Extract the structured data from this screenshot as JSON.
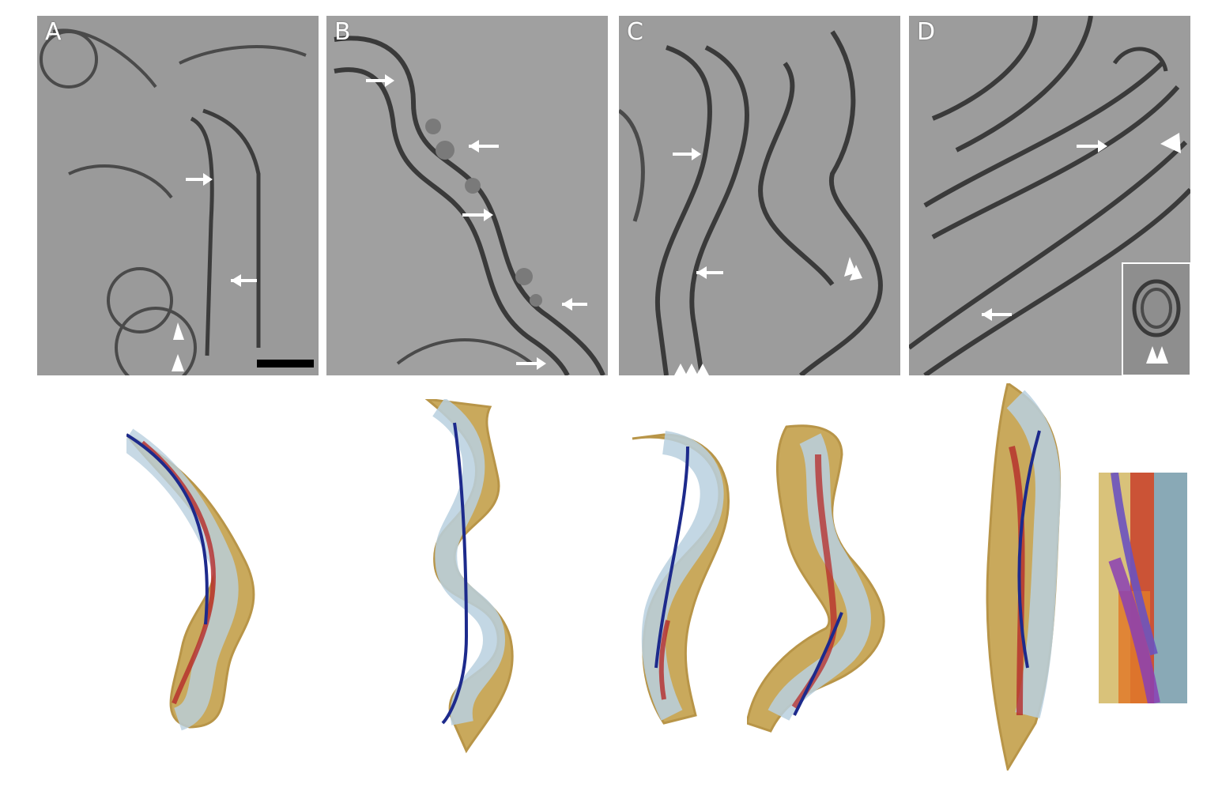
{
  "panels": [
    {
      "id": "A",
      "label": "A"
    },
    {
      "id": "B",
      "label": "B"
    },
    {
      "id": "C",
      "label": "C"
    },
    {
      "id": "D",
      "label": "D"
    }
  ],
  "colors": {
    "tomogram_background": "#9b9b9b",
    "membrane": "#3c3c3c",
    "arrow": "#ffffff",
    "scale_bar": "#000000",
    "outer_membrane_render": "#c9a95c",
    "cytoplasm_render": "#b9d0df",
    "filament_red": "#b52a2a",
    "filament_blue": "#1d2a8c",
    "filament_purple": "#8a3fb5",
    "filament_orange": "#e07a2a"
  },
  "icons": [
    "arrow-icon",
    "arrowhead-icon",
    "scale-bar"
  ]
}
